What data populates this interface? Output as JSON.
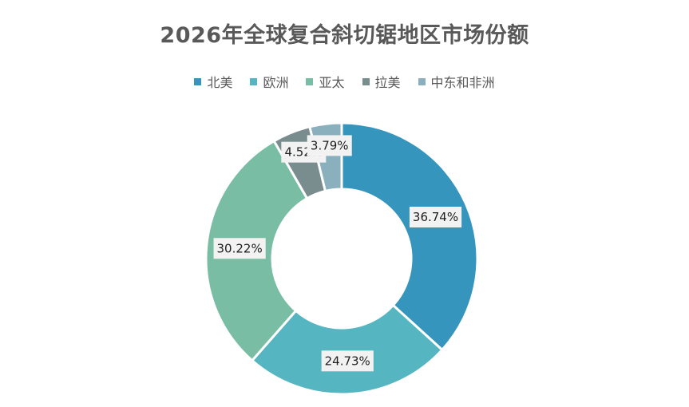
{
  "chart_data": {
    "type": "pie",
    "subtype": "donut",
    "title": "2026年全球复合斜切锯地区市场份额",
    "categories": [
      "北美",
      "欧洲",
      "亚太",
      "拉美",
      "中东和非洲"
    ],
    "values": [
      36.74,
      24.73,
      30.22,
      4.52,
      3.79
    ],
    "labels": [
      "36.74%",
      "24.73%",
      "30.22%",
      "4.52%",
      "3.79%"
    ],
    "colors": [
      "#3595bd",
      "#55b6c2",
      "#78bda4",
      "#798c8e",
      "#8aafbd"
    ],
    "legend_position": "top"
  }
}
